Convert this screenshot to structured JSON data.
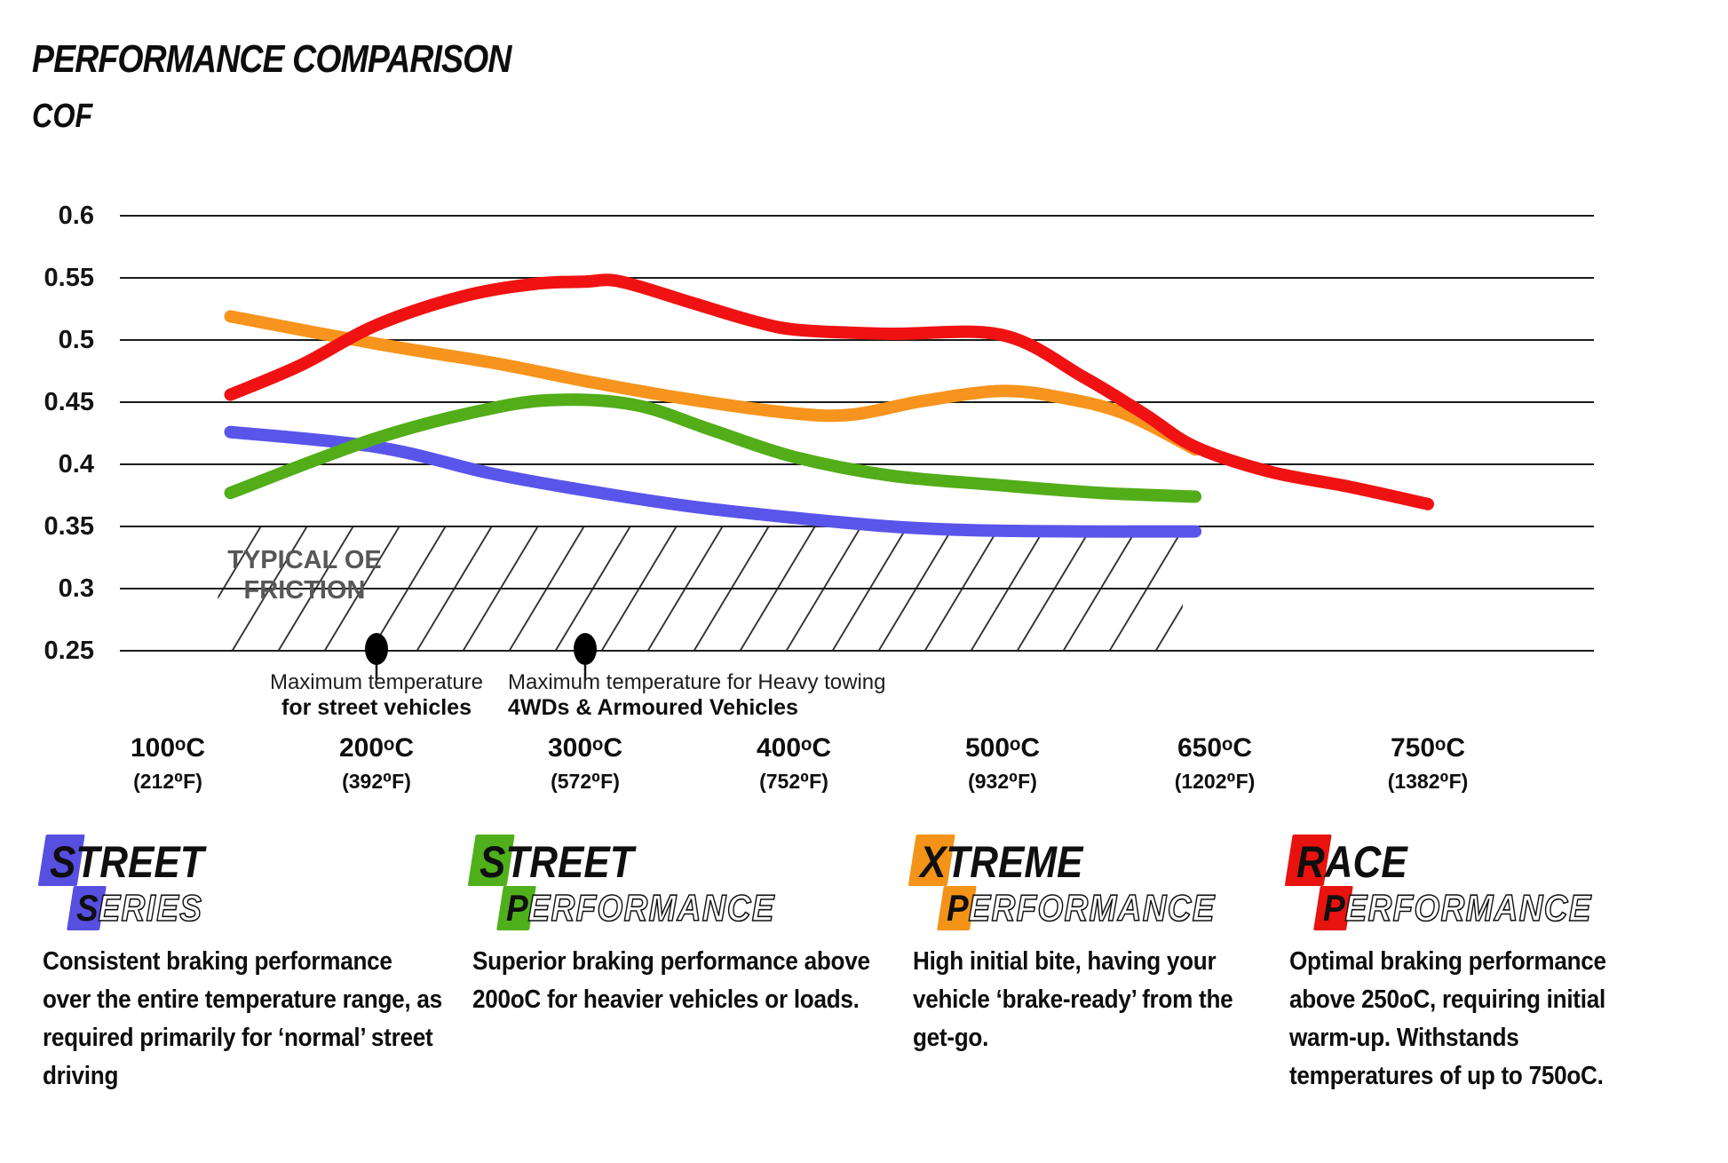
{
  "title": "PERFORMANCE COMPARISON",
  "axis_label": "COF",
  "chart_data": {
    "type": "line",
    "title": "PERFORMANCE COMPARISON",
    "ylabel": "COF",
    "ylim": [
      0.25,
      0.6
    ],
    "grid": "horizontal",
    "yticks": [
      "0.6",
      "0.55",
      "0.5",
      "0.45",
      "0.4",
      "0.35",
      "0.3",
      "0.25"
    ],
    "ytick_values": [
      0.6,
      0.55,
      0.5,
      0.45,
      0.4,
      0.35,
      0.3,
      0.25
    ],
    "x_ticks": [
      {
        "main": "100ᵒC",
        "sub": "(212⁰F)",
        "temp_c": 100
      },
      {
        "main": "200ᵒC",
        "sub": "(392⁰F)",
        "temp_c": 200
      },
      {
        "main": "300ᵒC",
        "sub": "(572⁰F)",
        "temp_c": 300
      },
      {
        "main": "400ᵒC",
        "sub": "(752⁰F)",
        "temp_c": 400
      },
      {
        "main": "500ᵒC",
        "sub": "(932⁰F)",
        "temp_c": 500
      },
      {
        "main": "650ᵒC",
        "sub": "(1202⁰F)",
        "temp_c": 650
      },
      {
        "main": "750ᵒC",
        "sub": "(1382⁰F)",
        "temp_c": 750
      }
    ],
    "series": [
      {
        "name": "Street Series",
        "color": "#5a55ea",
        "points": [
          [
            130,
            0.426
          ],
          [
            200,
            0.414
          ],
          [
            254,
            0.393
          ],
          [
            300,
            0.379
          ],
          [
            351,
            0.366
          ],
          [
            400,
            0.357
          ],
          [
            446,
            0.35
          ],
          [
            486,
            0.347
          ],
          [
            560,
            0.346
          ],
          [
            636,
            0.346
          ]
        ]
      },
      {
        "name": "Xtreme Performance",
        "color": "#f7941d",
        "points": [
          [
            130,
            0.519
          ],
          [
            200,
            0.497
          ],
          [
            258,
            0.481
          ],
          [
            300,
            0.467
          ],
          [
            351,
            0.452
          ],
          [
            400,
            0.441
          ],
          [
            428,
            0.44
          ],
          [
            462,
            0.451
          ],
          [
            500,
            0.459
          ],
          [
            543,
            0.453
          ],
          [
            587,
            0.44
          ],
          [
            636,
            0.412
          ]
        ]
      },
      {
        "name": "Street Performance",
        "color": "#52ad19",
        "points": [
          [
            130,
            0.377
          ],
          [
            200,
            0.421
          ],
          [
            258,
            0.446
          ],
          [
            292,
            0.452
          ],
          [
            326,
            0.447
          ],
          [
            360,
            0.428
          ],
          [
            400,
            0.406
          ],
          [
            446,
            0.391
          ],
          [
            500,
            0.383
          ],
          [
            568,
            0.377
          ],
          [
            636,
            0.374
          ]
        ]
      },
      {
        "name": "Race Performance",
        "color": "#f01212",
        "points": [
          [
            130,
            0.456
          ],
          [
            164,
            0.48
          ],
          [
            200,
            0.512
          ],
          [
            241,
            0.535
          ],
          [
            275,
            0.545
          ],
          [
            300,
            0.547
          ],
          [
            317,
            0.547
          ],
          [
            351,
            0.53
          ],
          [
            381,
            0.515
          ],
          [
            403,
            0.508
          ],
          [
            446,
            0.505
          ],
          [
            500,
            0.504
          ],
          [
            556,
            0.47
          ],
          [
            600,
            0.44
          ],
          [
            636,
            0.414
          ],
          [
            676,
            0.394
          ],
          [
            713,
            0.382
          ],
          [
            750,
            0.368
          ]
        ]
      }
    ],
    "oe_band": {
      "label": [
        "TYPICAL OE",
        "FRICTION"
      ],
      "cof_range": [
        0.25,
        0.35
      ],
      "temp_range_c": [
        124,
        627
      ]
    },
    "markers": [
      {
        "temp_c": 200,
        "cof": 0.25
      },
      {
        "temp_c": 300,
        "cof": 0.25
      }
    ],
    "annotations": [
      {
        "line1": "Maximum temperature",
        "line2": "for street vehicles"
      },
      {
        "line1": "Maximum temperature for Heavy towing",
        "line2": "4WDs & Armoured Vehicles"
      }
    ]
  },
  "legend": [
    {
      "line1_first": "S",
      "line1_rest": "TREET",
      "line2_first": "S",
      "line2_rest": "ERIES",
      "color": "#564fe0",
      "description": "Consistent braking performance over the entire temperature range, as required primarily for ‘normal’ street driving"
    },
    {
      "line1_first": "S",
      "line1_rest": "TREET",
      "line2_first": "P",
      "line2_rest": "ERFORMANCE",
      "color": "#4fb01c",
      "description": "Superior braking performance above 200oC for heavier vehicles or loads."
    },
    {
      "line1_first": "X",
      "line1_rest": "TREME",
      "line2_first": "P",
      "line2_rest": "ERFORMANCE",
      "color": "#f39318",
      "description": "High initial bite, having your vehicle ‘brake-ready’ from the get-go."
    },
    {
      "line1_first": "R",
      "line1_rest": "ACE",
      "line2_first": "P",
      "line2_rest": "ERFORMANCE",
      "color": "#e8120f",
      "description": "Optimal braking performance above 250oC, requiring initial warm-up. Withstands temperatures of up to 750oC."
    }
  ]
}
